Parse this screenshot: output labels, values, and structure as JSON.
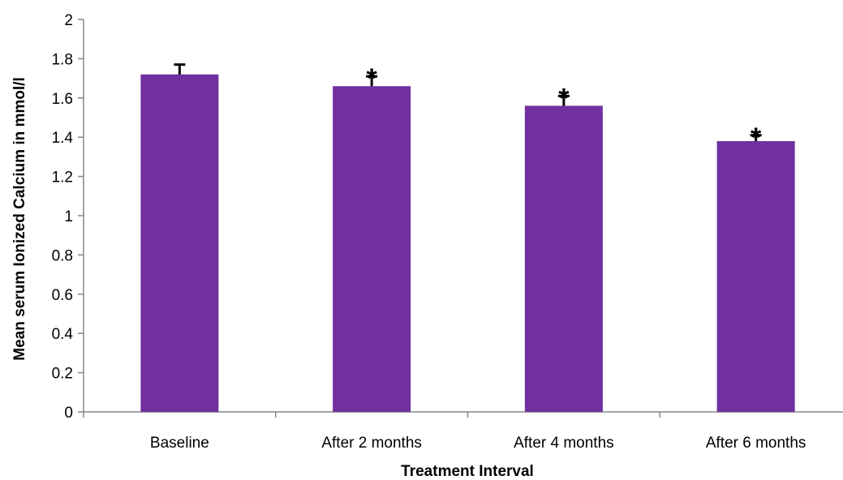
{
  "chart_data": {
    "type": "bar",
    "title": "",
    "xlabel": "Treatment Interval",
    "ylabel": "Mean serum Ionized Calcium in mmol/l",
    "categories": [
      "Baseline",
      "After 2 months",
      "After 4 months",
      "After 6 months"
    ],
    "values": [
      1.72,
      1.66,
      1.56,
      1.38
    ],
    "error_plus": [
      0.05,
      0.05,
      0.05,
      0.03
    ],
    "significance_markers": [
      "",
      "*",
      "*",
      "*"
    ],
    "ylim": [
      0,
      2
    ],
    "yticks": [
      "0",
      "0.2",
      "0.4",
      "0.6",
      "0.8",
      "1",
      "1.2",
      "1.4",
      "1.6",
      "1.8",
      "2"
    ],
    "bar_color": "#7030a0",
    "grid": false,
    "legend": "none"
  }
}
